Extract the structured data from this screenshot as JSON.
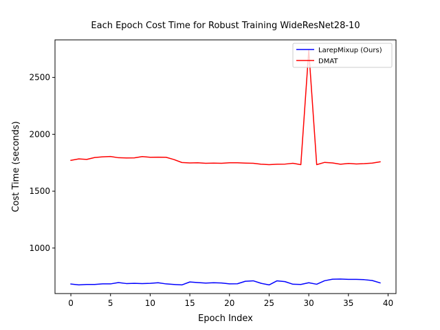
{
  "chart_data": {
    "type": "line",
    "title": "Each Epoch Cost Time for Robust Training WideResNet28-10",
    "xlabel": "Epoch Index",
    "ylabel": "Cost Time (seconds)",
    "xlim": [
      -2,
      41
    ],
    "ylim": [
      600,
      2830
    ],
    "xticks": [
      0,
      5,
      10,
      15,
      20,
      25,
      30,
      35,
      40
    ],
    "yticks": [
      1000,
      1500,
      2000,
      2500
    ],
    "grid": false,
    "legend_position": "top-right",
    "x": [
      0,
      1,
      2,
      3,
      4,
      5,
      6,
      7,
      8,
      9,
      10,
      11,
      12,
      13,
      14,
      15,
      16,
      17,
      18,
      19,
      20,
      21,
      22,
      23,
      24,
      25,
      26,
      27,
      28,
      29,
      30,
      31,
      32,
      33,
      34,
      35,
      36,
      37,
      38,
      39
    ],
    "series": [
      {
        "name": "LarepMixup (Ours)",
        "color": "#0000ff",
        "values": [
          684,
          676,
          680,
          680,
          685,
          685,
          697,
          688,
          690,
          688,
          690,
          695,
          685,
          680,
          676,
          702,
          697,
          692,
          695,
          693,
          685,
          686,
          708,
          712,
          690,
          676,
          712,
          705,
          682,
          680,
          695,
          682,
          713,
          726,
          728,
          725,
          725,
          722,
          715,
          694
        ]
      },
      {
        "name": "DMAT",
        "color": "#ff0000",
        "values": [
          1771,
          1784,
          1779,
          1796,
          1802,
          1805,
          1794,
          1792,
          1793,
          1804,
          1798,
          1799,
          1798,
          1778,
          1752,
          1748,
          1750,
          1745,
          1747,
          1745,
          1750,
          1750,
          1747,
          1745,
          1737,
          1733,
          1737,
          1738,
          1745,
          1733,
          2740,
          1733,
          1753,
          1748,
          1737,
          1744,
          1739,
          1742,
          1747,
          1758
        ]
      }
    ]
  }
}
